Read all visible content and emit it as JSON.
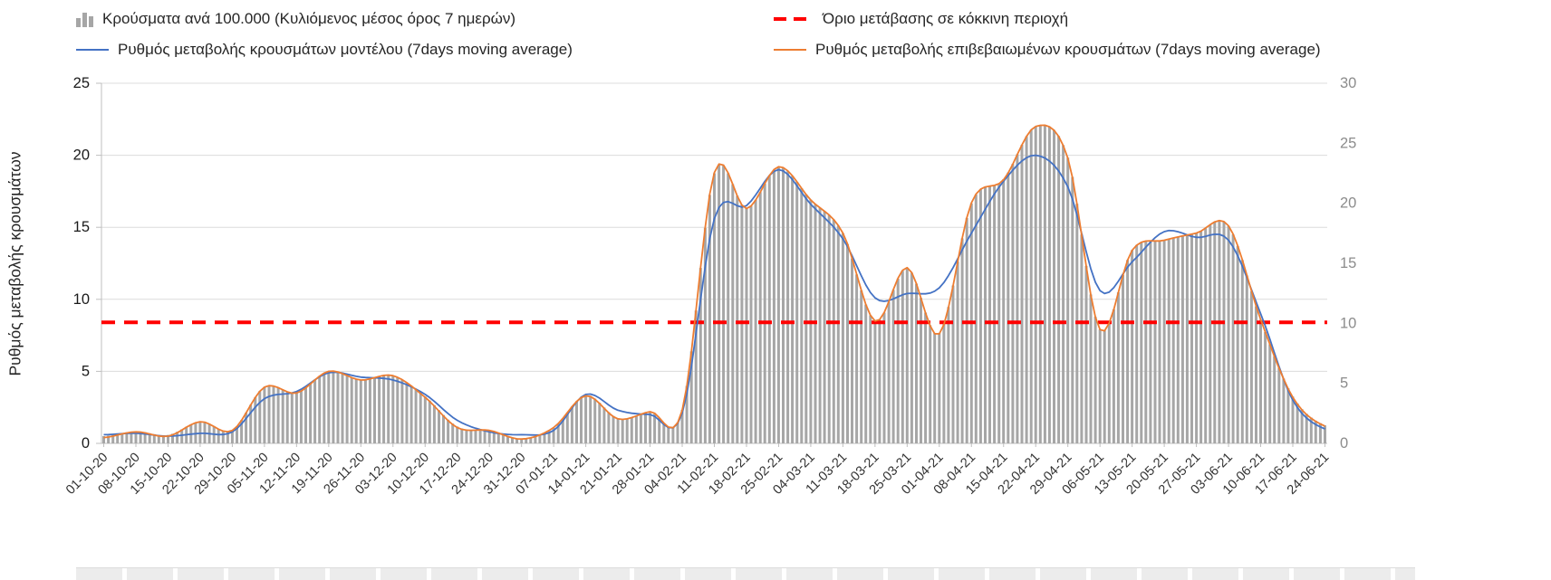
{
  "chart_data": {
    "type": "bar",
    "combo": "bar+line+threshold",
    "title": "",
    "categories": [
      "01-10-20",
      "08-10-20",
      "15-10-20",
      "22-10-20",
      "29-10-20",
      "05-11-20",
      "12-11-20",
      "19-11-20",
      "26-11-20",
      "03-12-20",
      "10-12-20",
      "17-12-20",
      "24-12-20",
      "31-12-20",
      "07-01-21",
      "14-01-21",
      "21-01-21",
      "28-01-21",
      "04-02-21",
      "11-02-21",
      "18-02-21",
      "25-02-21",
      "04-03-21",
      "11-03-21",
      "18-03-21",
      "25-03-21",
      "01-04-21",
      "08-04-21",
      "15-04-21",
      "22-04-21",
      "29-04-21",
      "06-05-21",
      "13-05-21",
      "20-05-21",
      "27-05-21",
      "03-06-21",
      "10-06-21",
      "17-06-21",
      "24-06-21"
    ],
    "series": [
      {
        "key": "cases-per-100k",
        "name": "Κρούσματα ανά 100.000 (Κυλιόμενος μέσος όρος 7 ημερών)",
        "type": "bar",
        "axis": "right",
        "color": "#a6a6a6",
        "values": [
          0.6,
          1.0,
          0.7,
          1.8,
          1.1,
          4.7,
          4.2,
          6.0,
          5.3,
          5.6,
          3.9,
          1.4,
          1.1,
          0.4,
          1.3,
          4.0,
          2.1,
          2.6,
          2.8,
          22.5,
          19.6,
          23.0,
          20.3,
          17.5,
          10.2,
          14.6,
          9.2,
          20.0,
          22.0,
          26.4,
          23.8,
          9.5,
          16.1,
          16.9,
          17.5,
          18.1,
          10.3,
          3.9,
          1.5
        ]
      },
      {
        "key": "red-zone-threshold",
        "name": "Όριο μετάβασης σε κόκκινη περιοχή",
        "type": "threshold",
        "axis": "left",
        "color": "#ff0000",
        "value": 8.4,
        "value_right_axis": 10
      },
      {
        "key": "model-rate",
        "name": "Ρυθμός μεταβολής κρουσμάτων μοντέλου (7days moving average)",
        "type": "line",
        "axis": "left",
        "color": "#4472c4",
        "values": [
          0.6,
          0.7,
          0.5,
          0.7,
          0.8,
          3.1,
          3.6,
          4.9,
          4.6,
          4.4,
          3.4,
          1.6,
          0.8,
          0.6,
          0.9,
          3.4,
          2.3,
          2.0,
          2.1,
          15.6,
          16.5,
          19.0,
          16.6,
          14.2,
          10.1,
          10.4,
          10.8,
          14.6,
          18.2,
          20.0,
          17.8,
          10.6,
          12.6,
          14.7,
          14.3,
          14.1,
          9.0,
          3.0,
          1.0
        ]
      },
      {
        "key": "confirmed-rate",
        "name": "Ρυθμός μεταβολής επιβεβαιωμένων κρουσμάτων (7days moving average)",
        "type": "line",
        "axis": "left",
        "color": "#ed7d31",
        "values": [
          0.4,
          0.8,
          0.5,
          1.5,
          0.9,
          3.9,
          3.5,
          5.0,
          4.4,
          4.7,
          3.2,
          1.1,
          0.9,
          0.3,
          1.1,
          3.3,
          1.7,
          2.2,
          2.3,
          18.8,
          16.3,
          19.2,
          16.9,
          14.6,
          8.5,
          12.2,
          7.6,
          16.7,
          18.3,
          22.0,
          19.8,
          7.9,
          13.4,
          14.1,
          14.6,
          15.1,
          8.6,
          3.2,
          1.2
        ]
      }
    ],
    "left_axis": {
      "label": "Ρυθμός μεταβολής κρουσμάτων",
      "min": 0,
      "max": 25,
      "ticks": [
        0,
        5,
        10,
        15,
        20,
        25
      ]
    },
    "right_axis": {
      "label": "",
      "min": 0,
      "max": 30,
      "ticks": [
        0,
        5,
        10,
        15,
        20,
        25,
        30
      ]
    },
    "grid": true,
    "legend_position": "top"
  }
}
